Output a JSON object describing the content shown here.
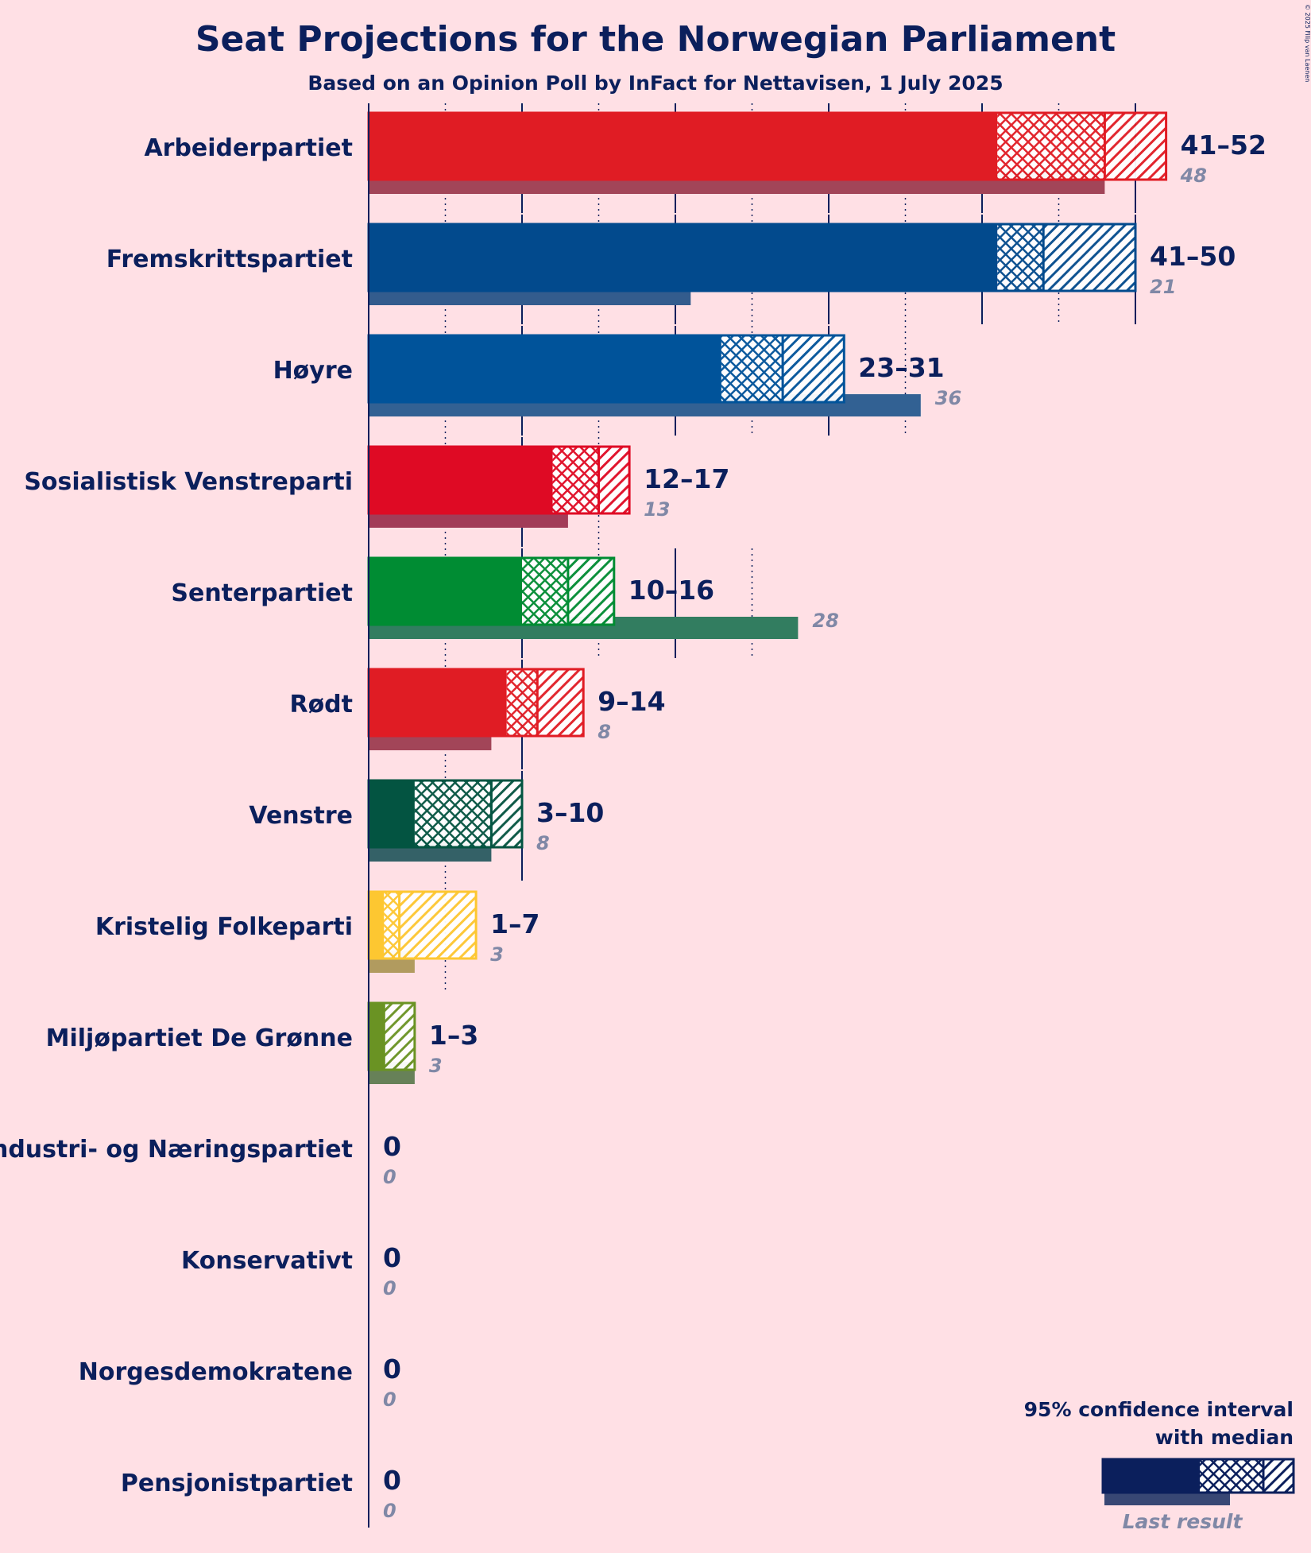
{
  "chart_data": {
    "type": "bar",
    "title": "Seat Projections for the Norwegian Parliament",
    "subtitle": "Based on an Opinion Poll by InFact for Nettavisen, 1 July 2025",
    "copyright": "© 2025 Filip van Laenen",
    "x_range": [
      0,
      52
    ],
    "gridlines": {
      "solid_every": 10,
      "dotted_every": 5
    },
    "series": [
      {
        "party": "Arbeiderpartiet",
        "color": "#e01c24",
        "low": 41,
        "median": 48,
        "high": 52,
        "label": "41–52",
        "last": 48,
        "last_label": "48"
      },
      {
        "party": "Fremskrittspartiet",
        "color": "#024a8d",
        "low": 41,
        "median": 44,
        "high": 50,
        "label": "41–50",
        "last": 21,
        "last_label": "21"
      },
      {
        "party": "Høyre",
        "color": "#00539a",
        "low": 23,
        "median": 27,
        "high": 31,
        "label": "23–31",
        "last": 36,
        "last_label": "36"
      },
      {
        "party": "Sosialistisk Venstreparti",
        "color": "#df0a24",
        "low": 12,
        "median": 15,
        "high": 17,
        "label": "12–17",
        "last": 13,
        "last_label": "13"
      },
      {
        "party": "Senterpartiet",
        "color": "#008c33",
        "low": 10,
        "median": 13,
        "high": 16,
        "label": "10–16",
        "last": 28,
        "last_label": "28"
      },
      {
        "party": "Rødt",
        "color": "#e01c24",
        "low": 9,
        "median": 11,
        "high": 14,
        "label": "9–14",
        "last": 8,
        "last_label": "8"
      },
      {
        "party": "Venstre",
        "color": "#035441",
        "low": 3,
        "median": 8,
        "high": 10,
        "label": "3–10",
        "last": 8,
        "last_label": "8"
      },
      {
        "party": "Kristelig Folkeparti",
        "color": "#fdc731",
        "low": 1,
        "median": 2,
        "high": 7,
        "label": "1–7",
        "last": 3,
        "last_label": "3"
      },
      {
        "party": "Miljøpartiet De Grønne",
        "color": "#6a9323",
        "low": 1,
        "median": 1,
        "high": 3,
        "label": "1–3",
        "last": 3,
        "last_label": "3"
      },
      {
        "party": "Industri- og Næringspartiet",
        "color": "#0b1f5c",
        "low": 0,
        "median": 0,
        "high": 0,
        "label": "0",
        "last": 0,
        "last_label": "0"
      },
      {
        "party": "Konservativt",
        "color": "#0b1f5c",
        "low": 0,
        "median": 0,
        "high": 0,
        "label": "0",
        "last": 0,
        "last_label": "0"
      },
      {
        "party": "Norgesdemokratene",
        "color": "#0b1f5c",
        "low": 0,
        "median": 0,
        "high": 0,
        "label": "0",
        "last": 0,
        "last_label": "0"
      },
      {
        "party": "Pensjonistpartiet",
        "color": "#0b1f5c",
        "low": 0,
        "median": 0,
        "high": 0,
        "label": "0",
        "last": 0,
        "last_label": "0"
      }
    ],
    "legend": {
      "line1": "95% confidence interval",
      "line2": "with median",
      "last": "Last result",
      "color": "#0b1f5c"
    }
  }
}
